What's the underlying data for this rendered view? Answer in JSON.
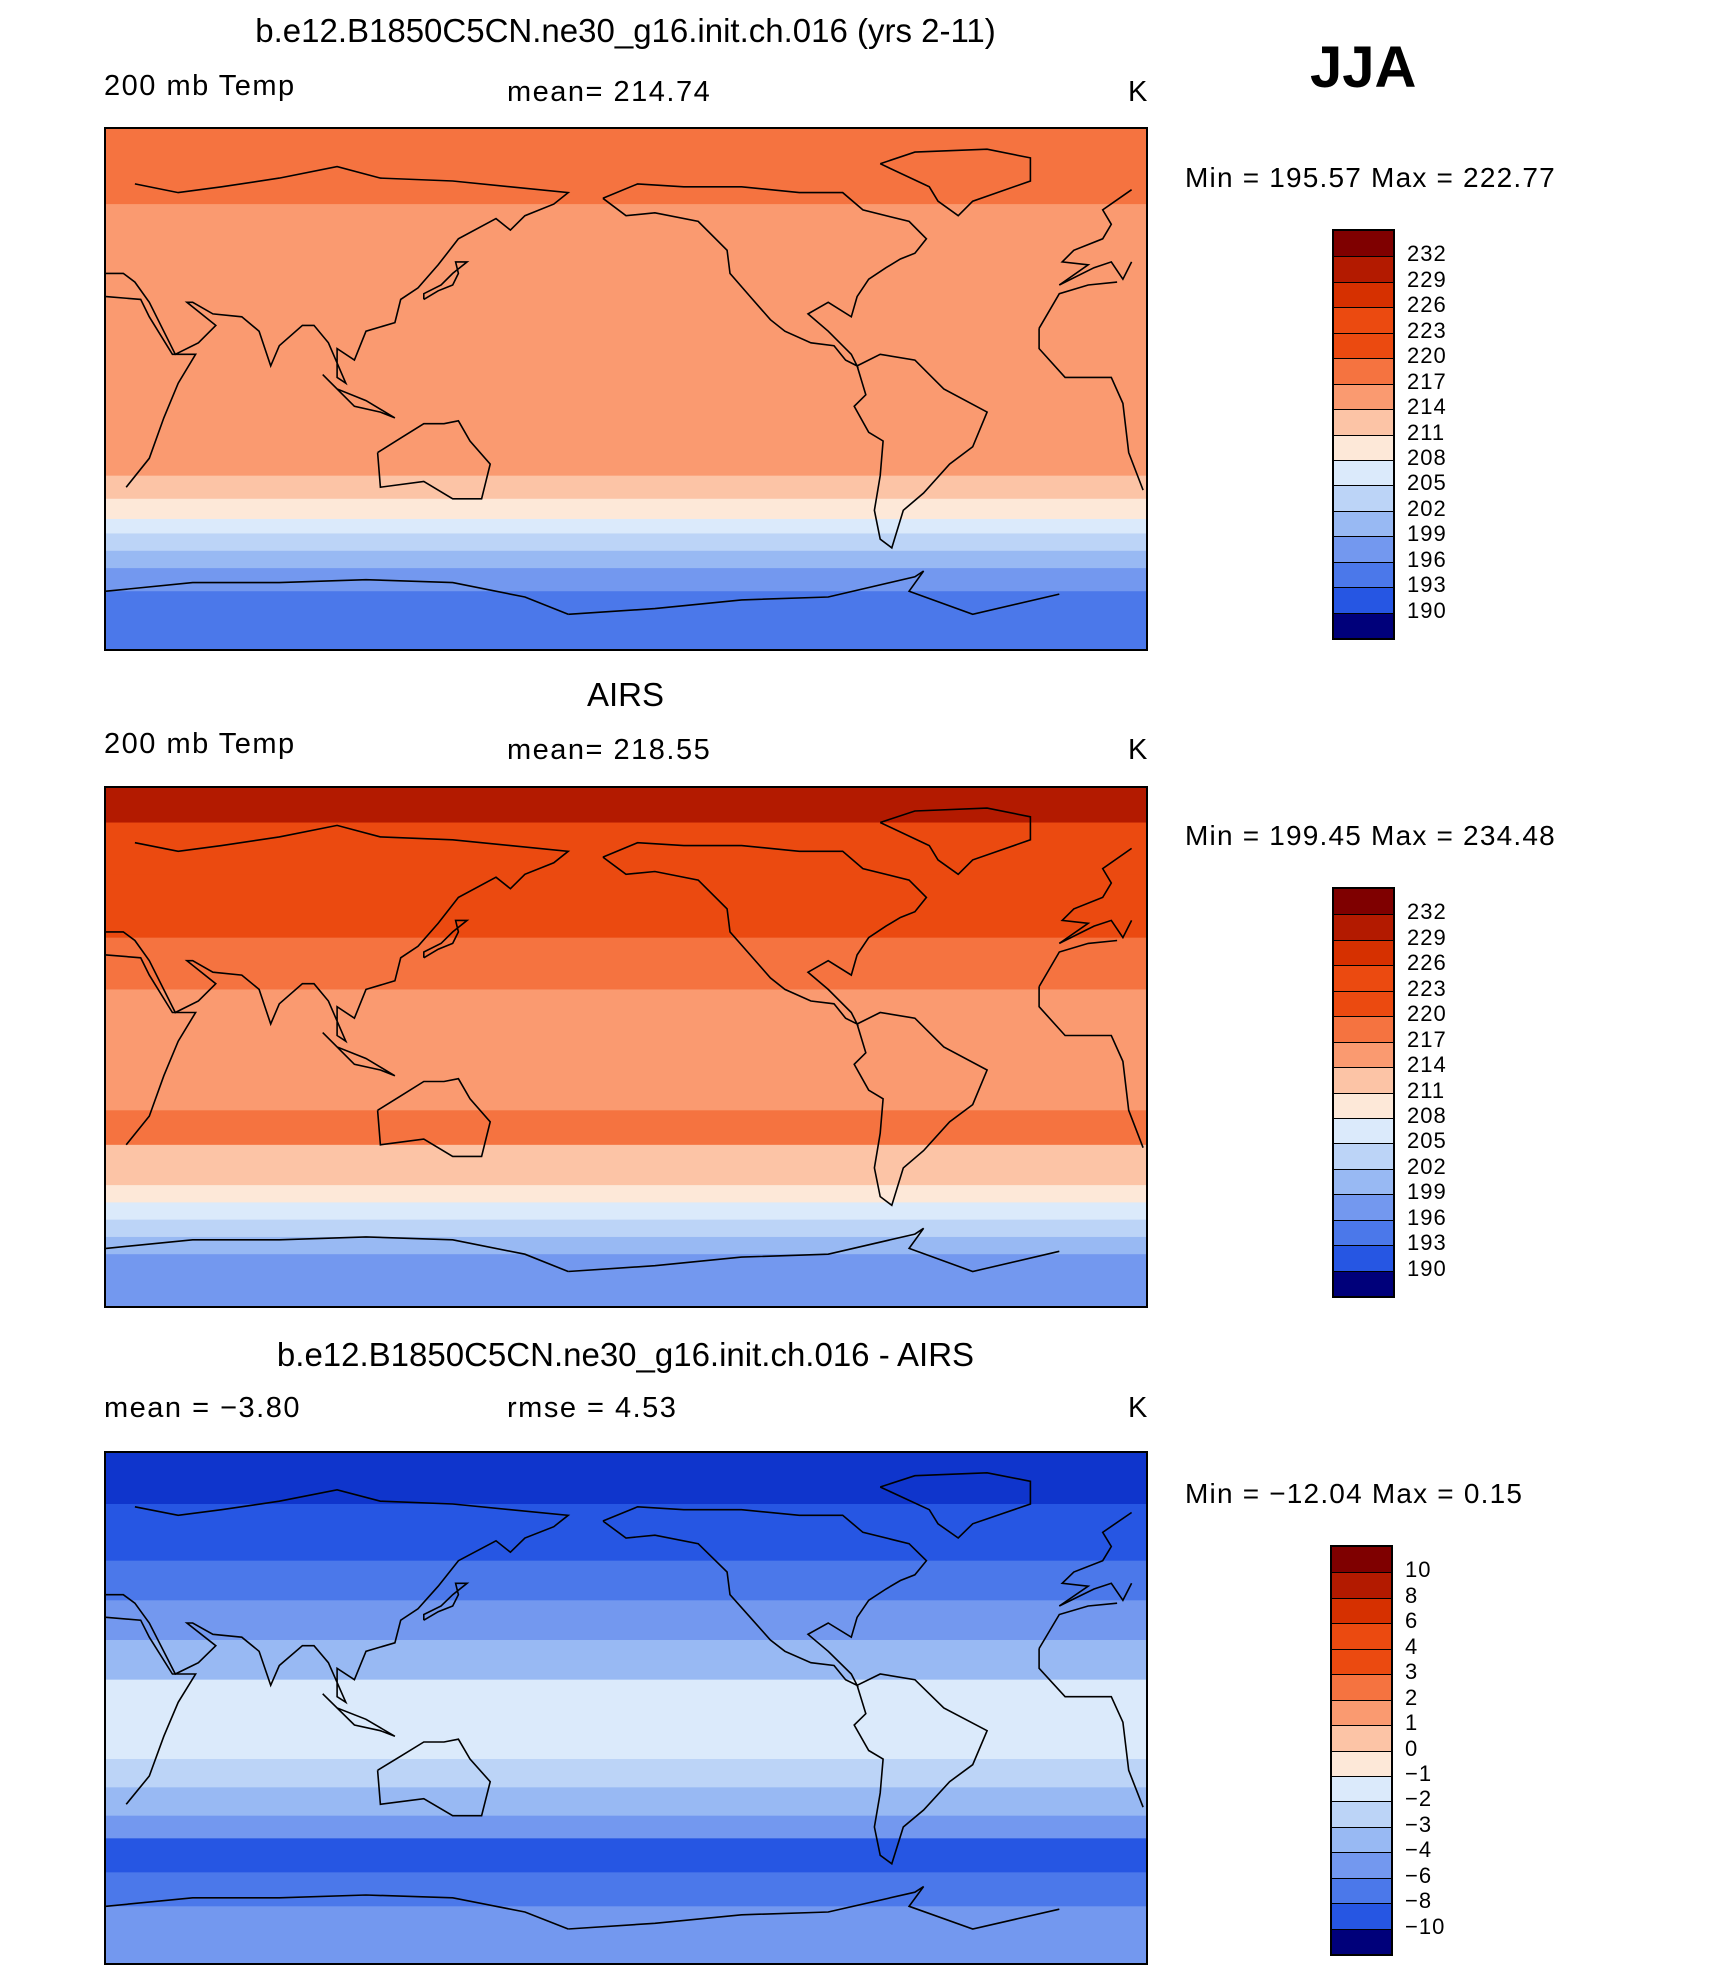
{
  "season": "JJA",
  "colors": {
    "reds": [
      "#7f0000",
      "#b31a00",
      "#d63000",
      "#eb4a10",
      "#f57340",
      "#fa9a70",
      "#fcc4a6",
      "#fde8d8"
    ],
    "blues": [
      "#dbeafb",
      "#bcd4f7",
      "#98b9f3",
      "#7398ef",
      "#4b78ea",
      "#2656e3",
      "#0f35cc",
      "#0022a3",
      "#00007a"
    ]
  },
  "panels": [
    {
      "title": "b.e12.B1850C5CN.ne30_g16.init.ch.016 (yrs 2-11)",
      "left_label": "200 mb Temp",
      "center_label": "mean=  214.74",
      "units": "K",
      "minmax": "Min  =  195.57  Max  =  222.77",
      "colorbar_labels": [
        "232",
        "229",
        "226",
        "223",
        "220",
        "217",
        "214",
        "211",
        "208",
        "205",
        "202",
        "199",
        "196",
        "193",
        "190"
      ],
      "bands": [
        {
          "from": 90,
          "to": 64,
          "c": 4
        },
        {
          "from": 64,
          "to": 44,
          "c": 5
        },
        {
          "from": 44,
          "to": 10,
          "c": 5
        },
        {
          "from": 10,
          "to": -30,
          "c": 5
        },
        {
          "from": -30,
          "to": -38,
          "c": 6
        },
        {
          "from": -38,
          "to": -45,
          "c": 7
        },
        {
          "from": -45,
          "to": -50,
          "c": 8
        },
        {
          "from": -50,
          "to": -56,
          "c": 9
        },
        {
          "from": -56,
          "to": -62,
          "c": 10
        },
        {
          "from": -62,
          "to": -70,
          "c": 11
        },
        {
          "from": -70,
          "to": -90,
          "c": 12
        }
      ]
    },
    {
      "title": "AIRS",
      "left_label": "200 mb Temp",
      "center_label": "mean=  218.55",
      "units": "K",
      "minmax": "Min  =  199.45  Max  =  234.48",
      "colorbar_labels": [
        "232",
        "229",
        "226",
        "223",
        "220",
        "217",
        "214",
        "211",
        "208",
        "205",
        "202",
        "199",
        "196",
        "193",
        "190"
      ],
      "bands": [
        {
          "from": 90,
          "to": 78,
          "c": 1
        },
        {
          "from": 78,
          "to": 60,
          "c": 3
        },
        {
          "from": 60,
          "to": 38,
          "c": 3
        },
        {
          "from": 38,
          "to": 20,
          "c": 4
        },
        {
          "from": 20,
          "to": -22,
          "c": 5
        },
        {
          "from": -22,
          "to": -34,
          "c": 4
        },
        {
          "from": -34,
          "to": -48,
          "c": 6
        },
        {
          "from": -48,
          "to": -54,
          "c": 7
        },
        {
          "from": -54,
          "to": -60,
          "c": 8
        },
        {
          "from": -60,
          "to": -66,
          "c": 9
        },
        {
          "from": -66,
          "to": -72,
          "c": 10
        },
        {
          "from": -72,
          "to": -90,
          "c": 11
        }
      ]
    },
    {
      "title": "b.e12.B1850C5CN.ne30_g16.init.ch.016 - AIRS",
      "left_label": "mean  =     −3.80",
      "center_label": "rmse  =      4.53",
      "units": "K",
      "minmax": "Min  =  −12.04  Max  =     0.15",
      "colorbar_labels": [
        "10",
        "8",
        "6",
        "4",
        "3",
        "2",
        "1",
        "0",
        "−1",
        "−2",
        "−3",
        "−4",
        "−6",
        "−8",
        "−10"
      ],
      "bands": [
        {
          "from": 90,
          "to": 72,
          "c": 14
        },
        {
          "from": 72,
          "to": 52,
          "c": 13
        },
        {
          "from": 52,
          "to": 38,
          "c": 12
        },
        {
          "from": 38,
          "to": 24,
          "c": 11
        },
        {
          "from": 24,
          "to": 10,
          "c": 10
        },
        {
          "from": 10,
          "to": -18,
          "c": 8
        },
        {
          "from": -18,
          "to": -28,
          "c": 9
        },
        {
          "from": -28,
          "to": -38,
          "c": 10
        },
        {
          "from": -38,
          "to": -46,
          "c": 11
        },
        {
          "from": -46,
          "to": -58,
          "c": 13
        },
        {
          "from": -58,
          "to": -70,
          "c": 12
        },
        {
          "from": -70,
          "to": -90,
          "c": 11
        }
      ]
    }
  ]
}
